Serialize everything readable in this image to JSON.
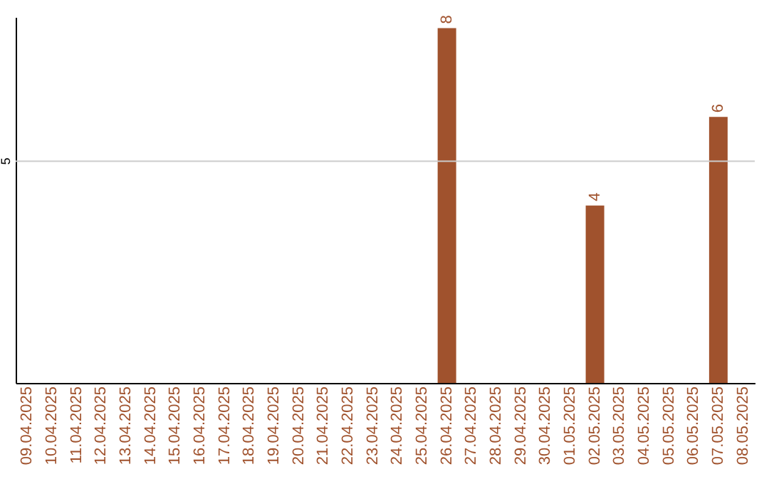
{
  "chart_data": {
    "type": "bar",
    "categories": [
      "09.04.2025",
      "10.04.2025",
      "11.04.2025",
      "12.04.2025",
      "13.04.2025",
      "14.04.2025",
      "15.04.2025",
      "16.04.2025",
      "17.04.2025",
      "18.04.2025",
      "19.04.2025",
      "20.04.2025",
      "21.04.2025",
      "22.04.2025",
      "23.04.2025",
      "24.04.2025",
      "25.04.2025",
      "26.04.2025",
      "27.04.2025",
      "28.04.2025",
      "29.04.2025",
      "30.04.2025",
      "01.05.2025",
      "02.05.2025",
      "03.05.2025",
      "04.05.2025",
      "05.05.2025",
      "06.05.2025",
      "07.05.2025",
      "08.05.2025"
    ],
    "values": [
      null,
      null,
      null,
      null,
      null,
      null,
      null,
      null,
      null,
      null,
      null,
      null,
      null,
      null,
      null,
      null,
      null,
      8,
      null,
      null,
      null,
      null,
      null,
      4,
      null,
      null,
      null,
      null,
      6,
      null
    ],
    "value_labels": [
      null,
      null,
      null,
      null,
      null,
      null,
      null,
      null,
      null,
      null,
      null,
      null,
      null,
      null,
      null,
      null,
      null,
      "8",
      null,
      null,
      null,
      null,
      null,
      "4",
      null,
      null,
      null,
      null,
      "6",
      null
    ],
    "color": "#a0522d",
    "ylim": [
      0,
      8.25
    ],
    "ref_lines": [
      {
        "axis": "y",
        "value": 5,
        "label": "5",
        "color": "#cccccc"
      }
    ]
  }
}
